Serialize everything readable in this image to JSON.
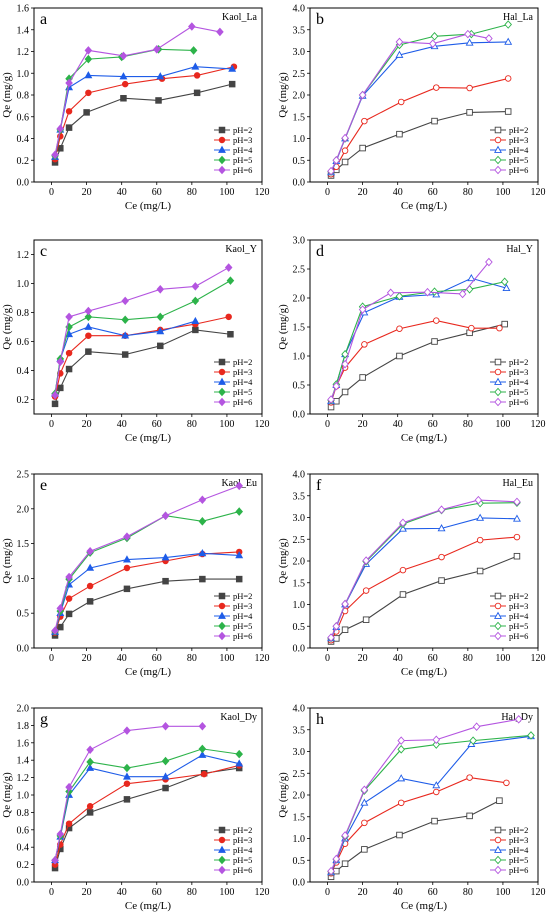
{
  "series_styles": [
    {
      "label": "pH=2",
      "color": "#444444",
      "marker": "square"
    },
    {
      "label": "pH=3",
      "color": "#e8281e",
      "marker": "circle"
    },
    {
      "label": "pH=4",
      "color": "#1e5ce8",
      "marker": "triangle"
    },
    {
      "label": "pH=5",
      "color": "#2db34a",
      "marker": "diamond"
    },
    {
      "label": "pH=6",
      "color": "#b455e0",
      "marker": "diamond"
    }
  ],
  "chart_data": [
    {
      "type": "line",
      "letter": "a",
      "title": "Kaol_La",
      "open_markers": false,
      "xlabel": "Ce (mg/L)",
      "ylabel": "Qe (mg/g)",
      "xlim": [
        -10,
        120
      ],
      "xticks": [
        0,
        20,
        40,
        60,
        80,
        100,
        120
      ],
      "ylim": [
        0,
        1.6
      ],
      "yticks": [
        0,
        0.2,
        0.4,
        0.6,
        0.8,
        1.0,
        1.2,
        1.4,
        1.6
      ],
      "series": [
        {
          "name": "pH=2",
          "x": [
            2,
            5,
            10,
            20,
            41,
            61,
            83,
            103
          ],
          "y": [
            0.18,
            0.31,
            0.5,
            0.64,
            0.77,
            0.75,
            0.82,
            0.9
          ]
        },
        {
          "name": "pH=3",
          "x": [
            2,
            5,
            10,
            21,
            42,
            63,
            83,
            104
          ],
          "y": [
            0.21,
            0.42,
            0.65,
            0.82,
            0.9,
            0.95,
            0.98,
            1.06
          ]
        },
        {
          "name": "pH=4",
          "x": [
            2,
            5,
            10,
            21,
            41,
            62,
            82,
            103
          ],
          "y": [
            0.23,
            0.48,
            0.87,
            0.98,
            0.97,
            0.97,
            1.06,
            1.04
          ]
        },
        {
          "name": "pH=5",
          "x": [
            2,
            5,
            10,
            21,
            40,
            61,
            81,
            102
          ],
          "y": [
            0.24,
            0.48,
            0.95,
            1.13,
            1.15,
            1.22,
            1.21,
            null
          ]
        },
        {
          "name": "pH=6",
          "x": [
            2,
            5,
            10,
            21,
            41,
            60,
            80,
            96
          ],
          "y": [
            0.25,
            0.49,
            0.91,
            1.21,
            1.16,
            1.22,
            1.43,
            1.38
          ]
        }
      ]
    },
    {
      "type": "line",
      "letter": "b",
      "title": "Hal_La",
      "open_markers": true,
      "xlabel": "Ce (mg/L)",
      "ylabel": "Qe (mg/g)",
      "xlim": [
        -10,
        120
      ],
      "xticks": [
        0,
        20,
        40,
        60,
        80,
        100,
        120
      ],
      "ylim": [
        0,
        4.0
      ],
      "yticks": [
        0,
        0.5,
        1.0,
        1.5,
        2.0,
        2.5,
        3.0,
        3.5,
        4.0
      ],
      "series": [
        {
          "name": "pH=2",
          "x": [
            2,
            5,
            10,
            20,
            41,
            61,
            81,
            103
          ],
          "y": [
            0.15,
            0.28,
            0.46,
            0.78,
            1.1,
            1.4,
            1.6,
            1.62
          ]
        },
        {
          "name": "pH=3",
          "x": [
            2,
            5,
            10,
            21,
            42,
            62,
            81,
            103
          ],
          "y": [
            0.18,
            0.35,
            0.72,
            1.4,
            1.84,
            2.17,
            2.16,
            2.38
          ]
        },
        {
          "name": "pH=4",
          "x": [
            2,
            5,
            10,
            20,
            41,
            61,
            81,
            103
          ],
          "y": [
            0.22,
            0.48,
            1.0,
            1.98,
            2.92,
            3.12,
            3.2,
            3.22
          ]
        },
        {
          "name": "pH=5",
          "x": [
            2,
            5,
            10,
            20,
            41,
            61,
            82,
            103
          ],
          "y": [
            0.24,
            0.5,
            1.0,
            2.0,
            3.15,
            3.35,
            3.4,
            3.62
          ]
        },
        {
          "name": "pH=6",
          "x": [
            2,
            5,
            10,
            20,
            41,
            60,
            80,
            92
          ],
          "y": [
            0.25,
            0.5,
            1.01,
            2.0,
            3.22,
            3.18,
            3.4,
            3.3
          ]
        }
      ]
    },
    {
      "type": "line",
      "letter": "c",
      "title": "Kaol_Y",
      "open_markers": false,
      "xlabel": "Ce (mg/L)",
      "ylabel": "Qe (mg/g)",
      "xlim": [
        -10,
        120
      ],
      "xticks": [
        0,
        20,
        40,
        60,
        80,
        100,
        120
      ],
      "ylim": [
        0.1,
        1.3
      ],
      "yticks": [
        0.2,
        0.4,
        0.6,
        0.8,
        1.0,
        1.2
      ],
      "series": [
        {
          "name": "pH=2",
          "x": [
            2,
            5,
            10,
            21,
            42,
            62,
            82,
            102
          ],
          "y": [
            0.17,
            0.28,
            0.41,
            0.53,
            0.51,
            0.57,
            0.68,
            0.65
          ]
        },
        {
          "name": "pH=3",
          "x": [
            2,
            5,
            10,
            21,
            42,
            62,
            82,
            101
          ],
          "y": [
            0.22,
            0.38,
            0.52,
            0.64,
            0.64,
            0.68,
            0.72,
            0.77
          ]
        },
        {
          "name": "pH=4",
          "x": [
            2,
            5,
            10,
            21,
            42,
            62,
            82,
            null
          ],
          "y": [
            0.24,
            0.48,
            0.65,
            0.7,
            0.64,
            0.67,
            0.74,
            null
          ]
        },
        {
          "name": "pH=5",
          "x": [
            2,
            5,
            10,
            21,
            42,
            62,
            82,
            102
          ],
          "y": [
            0.24,
            0.48,
            0.7,
            0.77,
            0.75,
            0.77,
            0.88,
            1.02
          ]
        },
        {
          "name": "pH=6",
          "x": [
            2,
            5,
            10,
            21,
            42,
            62,
            82,
            101
          ],
          "y": [
            0.23,
            0.46,
            0.77,
            0.81,
            0.88,
            0.96,
            0.98,
            1.11
          ]
        }
      ]
    },
    {
      "type": "line",
      "letter": "d",
      "title": "Hal_Y",
      "open_markers": true,
      "xlabel": "Ce (mg/L)",
      "ylabel": "Qe (mg/g)",
      "xlim": [
        -10,
        120
      ],
      "xticks": [
        0,
        20,
        40,
        60,
        80,
        100,
        120
      ],
      "ylim": [
        0,
        3.0
      ],
      "yticks": [
        0,
        0.5,
        1.0,
        1.5,
        2.0,
        2.5,
        3.0
      ],
      "series": [
        {
          "name": "pH=2",
          "x": [
            2,
            5,
            10,
            20,
            41,
            61,
            81,
            101
          ],
          "y": [
            0.12,
            0.22,
            0.38,
            0.63,
            1.0,
            1.25,
            1.4,
            1.55
          ]
        },
        {
          "name": "pH=3",
          "x": [
            2,
            5,
            10,
            21,
            41,
            62,
            82,
            98
          ],
          "y": [
            0.2,
            0.48,
            0.8,
            1.2,
            1.47,
            1.61,
            1.48,
            1.48
          ]
        },
        {
          "name": "pH=4",
          "x": [
            2,
            5,
            10,
            21,
            41,
            62,
            82,
            102
          ],
          "y": [
            0.22,
            0.5,
            1.03,
            1.75,
            2.02,
            2.06,
            2.34,
            2.17
          ]
        },
        {
          "name": "pH=5",
          "x": [
            2,
            5,
            10,
            20,
            41,
            61,
            81,
            101
          ],
          "y": [
            0.24,
            0.51,
            1.03,
            1.85,
            2.03,
            2.11,
            2.15,
            2.28
          ]
        },
        {
          "name": "pH=6",
          "x": [
            2,
            5,
            10,
            20,
            36,
            57,
            77,
            92
          ],
          "y": [
            0.25,
            0.48,
            0.86,
            1.8,
            2.09,
            2.1,
            2.07,
            2.62
          ]
        }
      ]
    },
    {
      "type": "line",
      "letter": "e",
      "title": "Kaol_Eu",
      "open_markers": false,
      "xlabel": "Ce (mg/L)",
      "ylabel": "Qe (mg/g)",
      "xlim": [
        -10,
        120
      ],
      "xticks": [
        0,
        20,
        40,
        60,
        80,
        100,
        120
      ],
      "ylim": [
        0,
        2.5
      ],
      "yticks": [
        0,
        0.5,
        1.0,
        1.5,
        2.0,
        2.5
      ],
      "series": [
        {
          "name": "pH=2",
          "x": [
            2,
            5,
            10,
            22,
            43,
            65,
            86,
            107
          ],
          "y": [
            0.18,
            0.3,
            0.49,
            0.67,
            0.85,
            0.96,
            0.99,
            0.99
          ]
        },
        {
          "name": "pH=3",
          "x": [
            2,
            5,
            10,
            22,
            43,
            65,
            86,
            107
          ],
          "y": [
            0.22,
            0.45,
            0.71,
            0.89,
            1.15,
            1.25,
            1.35,
            1.38
          ]
        },
        {
          "name": "pH=4",
          "x": [
            2,
            5,
            10,
            22,
            43,
            65,
            86,
            107
          ],
          "y": [
            0.23,
            0.5,
            0.91,
            1.15,
            1.27,
            1.3,
            1.36,
            1.33
          ]
        },
        {
          "name": "pH=5",
          "x": [
            2,
            5,
            10,
            22,
            43,
            65,
            86,
            107
          ],
          "y": [
            0.24,
            0.53,
            0.99,
            1.37,
            1.58,
            1.9,
            1.82,
            1.96
          ]
        },
        {
          "name": "pH=6",
          "x": [
            2,
            5,
            10,
            22,
            43,
            65,
            86,
            107
          ],
          "y": [
            0.25,
            0.57,
            1.02,
            1.39,
            1.6,
            1.9,
            2.13,
            2.33
          ]
        }
      ]
    },
    {
      "type": "line",
      "letter": "f",
      "title": "Hal_Eu",
      "open_markers": true,
      "xlabel": "Ce (mg/L)",
      "ylabel": "Qe (mg/g)",
      "xlim": [
        -10,
        120
      ],
      "xticks": [
        0,
        20,
        40,
        60,
        80,
        100,
        120
      ],
      "ylim": [
        0,
        4.0
      ],
      "yticks": [
        0,
        0.5,
        1.0,
        1.5,
        2.0,
        2.5,
        3.0,
        3.5,
        4.0
      ],
      "series": [
        {
          "name": "pH=2",
          "x": [
            2,
            5,
            10,
            22,
            43,
            65,
            87,
            108
          ],
          "y": [
            0.15,
            0.22,
            0.42,
            0.65,
            1.23,
            1.55,
            1.77,
            2.11
          ]
        },
        {
          "name": "pH=3",
          "x": [
            2,
            5,
            10,
            22,
            43,
            65,
            87,
            108
          ],
          "y": [
            0.18,
            0.38,
            0.85,
            1.32,
            1.79,
            2.09,
            2.48,
            2.55
          ]
        },
        {
          "name": "pH=4",
          "x": [
            2,
            5,
            10,
            22,
            43,
            65,
            87,
            108
          ],
          "y": [
            0.22,
            0.48,
            1.0,
            1.93,
            2.74,
            2.75,
            2.99,
            2.97
          ]
        },
        {
          "name": "pH=5",
          "x": [
            2,
            5,
            10,
            22,
            43,
            65,
            87,
            108
          ],
          "y": [
            0.23,
            0.5,
            1.01,
            1.99,
            2.85,
            3.17,
            3.33,
            3.34
          ]
        },
        {
          "name": "pH=6",
          "x": [
            2,
            5,
            10,
            22,
            43,
            65,
            86,
            108
          ],
          "y": [
            0.24,
            0.5,
            1.01,
            2.01,
            2.88,
            3.18,
            3.4,
            3.36
          ]
        }
      ]
    },
    {
      "type": "line",
      "letter": "g",
      "title": "Kaol_Dy",
      "open_markers": false,
      "xlabel": "Ce (mg/L)",
      "ylabel": "Qe (mg/g)",
      "xlim": [
        -10,
        120
      ],
      "xticks": [
        0,
        20,
        40,
        60,
        80,
        100,
        120
      ],
      "ylim": [
        0,
        2.0
      ],
      "yticks": [
        0,
        0.2,
        0.4,
        0.6,
        0.8,
        1.0,
        1.2,
        1.4,
        1.6,
        1.8,
        2.0
      ],
      "series": [
        {
          "name": "pH=2",
          "x": [
            2,
            5,
            10,
            22,
            43,
            65,
            87,
            107
          ],
          "y": [
            0.16,
            0.38,
            0.62,
            0.8,
            0.95,
            1.08,
            1.25,
            1.31
          ]
        },
        {
          "name": "pH=3",
          "x": [
            2,
            5,
            10,
            22,
            43,
            65,
            87,
            107
          ],
          "y": [
            0.2,
            0.43,
            0.67,
            0.87,
            1.13,
            1.18,
            1.24,
            1.34
          ]
        },
        {
          "name": "pH=4",
          "x": [
            2,
            5,
            10,
            22,
            43,
            65,
            86,
            107
          ],
          "y": [
            0.25,
            0.52,
            1.0,
            1.31,
            1.21,
            1.21,
            1.46,
            1.36
          ]
        },
        {
          "name": "pH=5",
          "x": [
            2,
            5,
            10,
            22,
            43,
            65,
            86,
            107
          ],
          "y": [
            0.25,
            0.53,
            1.04,
            1.38,
            1.31,
            1.39,
            1.53,
            1.47
          ]
        },
        {
          "name": "pH=6",
          "x": [
            2,
            5,
            10,
            22,
            43,
            65,
            86,
            null
          ],
          "y": [
            0.25,
            0.55,
            1.09,
            1.52,
            1.74,
            1.79,
            1.79,
            null
          ]
        }
      ]
    },
    {
      "type": "line",
      "letter": "h",
      "title": "Hal_Dy",
      "open_markers": true,
      "xlabel": "Ce (mg/L)",
      "ylabel": "Qe (mg/g)",
      "xlim": [
        -10,
        120
      ],
      "xticks": [
        0,
        20,
        40,
        60,
        80,
        100,
        120
      ],
      "ylim": [
        0,
        4.0
      ],
      "yticks": [
        0,
        0.5,
        1.0,
        1.5,
        2.0,
        2.5,
        3.0,
        3.5,
        4.0
      ],
      "series": [
        {
          "name": "pH=2",
          "x": [
            2,
            5,
            10,
            21,
            41,
            61,
            81,
            98
          ],
          "y": [
            0.12,
            0.25,
            0.42,
            0.75,
            1.08,
            1.4,
            1.52,
            1.87
          ]
        },
        {
          "name": "pH=3",
          "x": [
            2,
            5,
            10,
            21,
            42,
            62,
            81,
            102
          ],
          "y": [
            0.2,
            0.45,
            0.88,
            1.36,
            1.82,
            2.07,
            2.4,
            2.28
          ]
        },
        {
          "name": "pH=4",
          "x": [
            2,
            5,
            10,
            21,
            42,
            62,
            82,
            116
          ],
          "y": [
            0.22,
            0.5,
            1.0,
            1.82,
            2.38,
            2.22,
            3.17,
            3.35
          ]
        },
        {
          "name": "pH=5",
          "x": [
            2,
            5,
            10,
            21,
            42,
            62,
            83,
            116
          ],
          "y": [
            0.24,
            0.52,
            1.05,
            2.1,
            3.05,
            3.16,
            3.25,
            3.37
          ]
        },
        {
          "name": "pH=6",
          "x": [
            2,
            5,
            10,
            21,
            42,
            62,
            85,
            109
          ],
          "y": [
            0.25,
            0.53,
            1.07,
            2.12,
            3.25,
            3.27,
            3.57,
            3.74
          ]
        }
      ]
    }
  ]
}
